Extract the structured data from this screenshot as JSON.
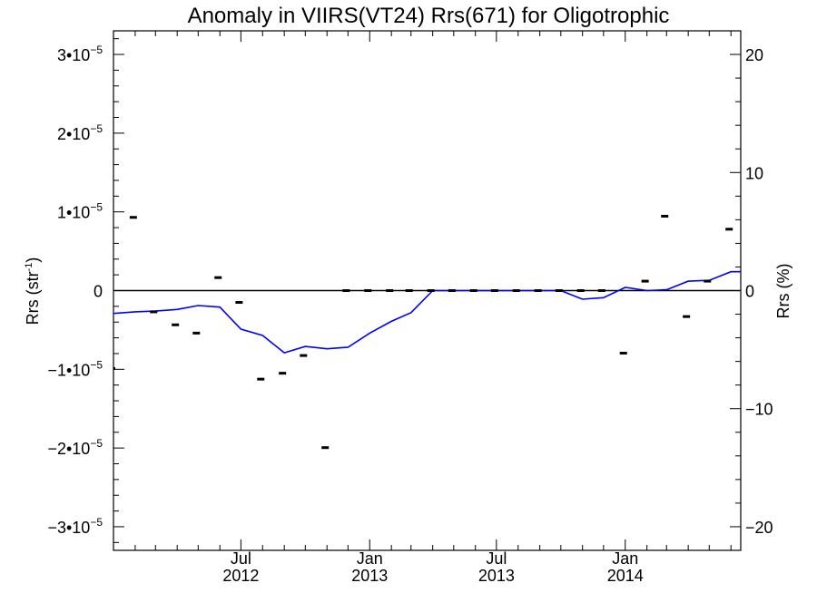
{
  "chart_data": {
    "type": "line",
    "title": "Anomaly in VIIRS(VT24) Rrs(671) for Oligotrophic",
    "ylabel": "Rrs (str",
    "ylabel_sup": "-1",
    "ylabel_suffix": ")",
    "y2label": "Rrs (%)",
    "xlim": [
      "2012-01-01",
      "2014-06-15"
    ],
    "ylim": [
      -3.3e-05,
      3.3e-05
    ],
    "y2lim": [
      -22.0,
      22.0
    ],
    "y_ticks": [
      {
        "value": -3e-05,
        "mantissa": "−3",
        "base": "•10",
        "exp": "−5"
      },
      {
        "value": -2e-05,
        "mantissa": "−2",
        "base": "•10",
        "exp": "−5"
      },
      {
        "value": -1e-05,
        "mantissa": "−1",
        "base": "•10",
        "exp": "−5"
      },
      {
        "value": 0,
        "mantissa": "0",
        "base": "",
        "exp": ""
      },
      {
        "value": 1e-05,
        "mantissa": "1",
        "base": "•10",
        "exp": "−5"
      },
      {
        "value": 2e-05,
        "mantissa": "2",
        "base": "•10",
        "exp": "−5"
      },
      {
        "value": 3e-05,
        "mantissa": "3",
        "base": "•10",
        "exp": "−5"
      }
    ],
    "y2_ticks": [
      {
        "value": -20,
        "label": "−20"
      },
      {
        "value": -10,
        "label": "−10"
      },
      {
        "value": 0,
        "label": "0"
      },
      {
        "value": 10,
        "label": "10"
      },
      {
        "value": 20,
        "label": "20"
      }
    ],
    "x_ticks": [
      {
        "date": "2012-07-01",
        "month": "Jul",
        "year": "2012"
      },
      {
        "date": "2013-01-01",
        "month": "Jan",
        "year": "2013"
      },
      {
        "date": "2013-07-01",
        "month": "Jul",
        "year": "2013"
      },
      {
        "date": "2014-01-01",
        "month": "Jan",
        "year": "2014"
      }
    ],
    "grid": false,
    "zero_line": true,
    "series": [
      {
        "type": "line",
        "color": "#0000ff",
        "axis": "y",
        "x": [
          "2012-01-01",
          "2012-02-01",
          "2012-03-01",
          "2012-04-01",
          "2012-05-01",
          "2012-06-01",
          "2012-07-01",
          "2012-08-01",
          "2012-09-01",
          "2012-10-01",
          "2012-11-01",
          "2012-12-01",
          "2013-01-01",
          "2013-02-01",
          "2013-03-01",
          "2013-04-01",
          "2013-05-01",
          "2013-06-01",
          "2013-07-01",
          "2013-08-01",
          "2013-09-01",
          "2013-10-01",
          "2013-11-01",
          "2013-12-01",
          "2014-01-01",
          "2014-02-01",
          "2014-03-01",
          "2014-04-01",
          "2014-05-01",
          "2014-06-01"
        ],
        "y": [
          -2.9e-06,
          -2.7e-06,
          -2.6e-06,
          -2.4e-06,
          -1.9e-06,
          -2.1e-06,
          -4.9e-06,
          -5.7e-06,
          -7.9e-06,
          -7.1e-06,
          -7.4e-06,
          -7.2e-06,
          -5.4e-06,
          -3.9e-06,
          -2.8e-06,
          0,
          0,
          0,
          0,
          0,
          0,
          0,
          -1.1e-06,
          -9e-07,
          4e-07,
          0,
          1e-07,
          1.2e-06,
          1.3e-06,
          2.4e-06
        ]
      },
      {
        "type": "scatter",
        "marker": "dash",
        "color": "#000000",
        "axis": "y2",
        "x": [
          "2012-01-01",
          "2012-02-01",
          "2012-03-01",
          "2012-04-01",
          "2012-05-01",
          "2012-06-01",
          "2012-07-01",
          "2012-08-01",
          "2012-09-01",
          "2012-10-01",
          "2012-11-01",
          "2012-12-01",
          "2013-01-01",
          "2013-02-01",
          "2013-03-01",
          "2013-04-01",
          "2013-05-01",
          "2013-06-01",
          "2013-07-01",
          "2013-08-01",
          "2013-09-01",
          "2013-10-01",
          "2013-11-01",
          "2013-12-01",
          "2014-01-01",
          "2014-02-01",
          "2014-03-01",
          "2014-04-01",
          "2014-05-01",
          "2014-06-01"
        ],
        "y": [
          -6.6,
          6.2,
          -1.8,
          -2.9,
          -3.6,
          1.1,
          -1.0,
          -7.5,
          -7.0,
          -5.5,
          -13.3,
          0,
          0,
          0,
          0,
          0,
          0,
          0,
          0,
          0,
          0,
          0,
          0,
          0,
          -5.3,
          0.8,
          6.3,
          -2.2,
          0.8,
          5.2
        ]
      }
    ]
  }
}
